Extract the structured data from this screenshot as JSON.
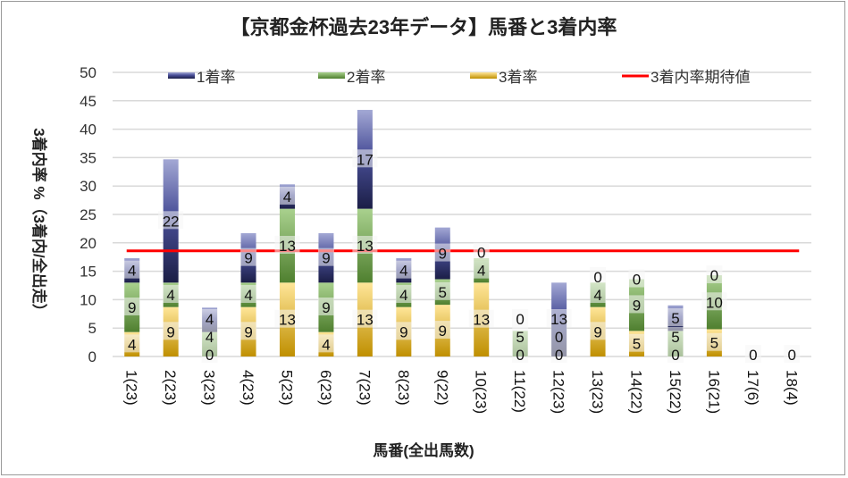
{
  "chart_data": {
    "type": "bar",
    "stacked": true,
    "title": "【京都金杯過去23年データ】馬番と3着内率",
    "xlabel": "馬番(全出馬数)",
    "ylabel": "3着内率 %（3着内/全出走）",
    "ylim": [
      0,
      50
    ],
    "yticks": [
      0,
      5,
      10,
      15,
      20,
      25,
      30,
      35,
      40,
      45,
      50
    ],
    "grid": true,
    "legend_position": "top",
    "categories": [
      "1(23)",
      "2(23)",
      "3(23)",
      "4(23)",
      "5(23)",
      "6(23)",
      "7(23)",
      "8(23)",
      "9(22)",
      "10(23)",
      "11(22)",
      "12(23)",
      "13(23)",
      "14(22)",
      "15(22)",
      "16(21)",
      "17(6)",
      "18(4)"
    ],
    "series": [
      {
        "name": "3着率",
        "color": "#d4a520",
        "values": [
          4.3,
          8.7,
          0,
          8.7,
          13.0,
          4.3,
          13.0,
          8.7,
          9.1,
          13.0,
          0,
          0,
          8.7,
          4.5,
          0,
          4.8,
          0,
          0
        ]
      },
      {
        "name": "2着率",
        "color": "#70ad47",
        "values": [
          8.7,
          4.3,
          4.3,
          4.3,
          13.0,
          8.7,
          13.0,
          4.3,
          4.5,
          4.3,
          4.5,
          0,
          4.3,
          9.1,
          4.5,
          9.5,
          0,
          0
        ]
      },
      {
        "name": "1着率",
        "color": "#5b62a8",
        "values": [
          4.3,
          21.7,
          4.3,
          8.7,
          4.3,
          8.7,
          17.4,
          4.3,
          9.1,
          0,
          0,
          13.0,
          0,
          0,
          4.5,
          0,
          0,
          0
        ]
      }
    ],
    "legend": [
      "1着率",
      "2着率",
      "3着率",
      "3着内率期待値"
    ],
    "reference_line": {
      "name": "3着内率期待値",
      "value": 18.6,
      "color": "#ff0000"
    }
  }
}
